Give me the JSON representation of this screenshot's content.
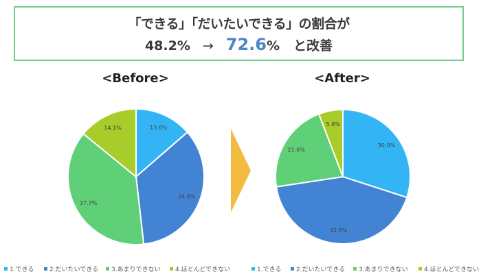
{
  "headline": {
    "line1": "「できる」「だいたいできる」の割合が",
    "before_value": "48.2%",
    "arrow": "→",
    "after_value": "72.6",
    "after_unit": "%",
    "suffix": "と改善",
    "border_color": "#72cc8a",
    "highlight_color": "#4a86c8"
  },
  "transition_arrow": {
    "icon": "right-triangle-arrow",
    "color": "#f3bb3f"
  },
  "legend_labels": [
    "1.できる",
    "2.だいたいできる",
    "3.あまりできない",
    "4.ほとんどできない"
  ],
  "colors": [
    "#33b5f5",
    "#4284d3",
    "#5fcf78",
    "#a8cc2a"
  ],
  "chart_data": [
    {
      "type": "pie",
      "title": "<Before>",
      "categories": [
        "1.できる",
        "2.だいたいできる",
        "3.あまりできない",
        "4.ほとんどできない"
      ],
      "values": [
        13.6,
        34.6,
        37.7,
        14.1
      ],
      "labels": [
        "13.6%",
        "34.6%",
        "37.7%",
        "14.1%"
      ],
      "colors": [
        "#33b5f5",
        "#4284d3",
        "#5fcf78",
        "#a8cc2a"
      ],
      "start_angle": "12 o'clock, clockwise",
      "legend_position": "bottom"
    },
    {
      "type": "pie",
      "title": "<After>",
      "categories": [
        "1.できる",
        "2.だいたいできる",
        "3.あまりできない",
        "4.ほとんどできない"
      ],
      "values": [
        30.0,
        42.6,
        21.6,
        5.8
      ],
      "labels": [
        "30.0%",
        "42.6%",
        "21.6%",
        "5.8%"
      ],
      "colors": [
        "#33b5f5",
        "#4284d3",
        "#5fcf78",
        "#a8cc2a"
      ],
      "start_angle": "12 o'clock, clockwise",
      "legend_position": "bottom"
    }
  ]
}
